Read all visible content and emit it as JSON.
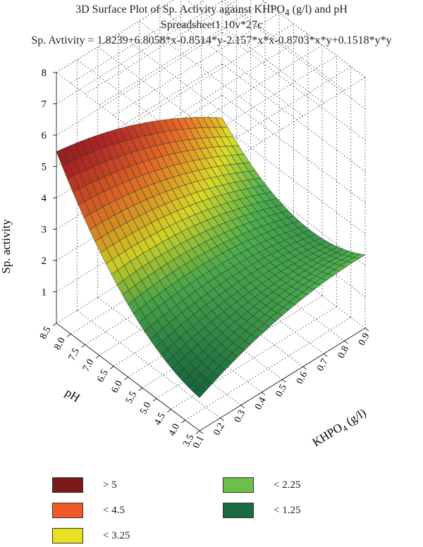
{
  "chart_data": {
    "type": "surface3d",
    "title": "3D Surface Plot of Sp. Activity against KHPO",
    "title_subscript": "4",
    "title_suffix": " (g/l) and pH",
    "subtitle": "Spreadsheet1 10v*27c",
    "equation": "Sp. Avtivity = 1.8239+6.8058*x-0.8514*y-2.157*x*x-0.8703*x*y+0.1518*y*y",
    "xlabel": "KHPO",
    "xlabel_subscript": "4",
    "xlabel_suffix": " (g/l)",
    "ylabel": "pH",
    "zlabel": "Sp. activity",
    "x_ticks": [
      "0.1",
      "0.2",
      "0.3",
      "0.4",
      "0.5",
      "0.6",
      "0.7",
      "0.8",
      "0.9"
    ],
    "y_ticks": [
      "3.5",
      "4.0",
      "4.5",
      "5.0",
      "5.5",
      "6.0",
      "6.5",
      "7.0",
      "7.5",
      "8.0",
      "8.5"
    ],
    "z_ticks": [
      "1",
      "2",
      "3",
      "4",
      "5",
      "6",
      "7",
      "8"
    ],
    "xlim": [
      0.1,
      0.9
    ],
    "ylim": [
      3.5,
      8.5
    ],
    "zlim": [
      0,
      8
    ],
    "coefficients": {
      "c": 1.8239,
      "x": 6.8058,
      "y": -0.8514,
      "xx": -2.157,
      "xy": -0.8703,
      "yy": 0.1518
    },
    "grid": true,
    "legend_position": "bottom",
    "legend": [
      {
        "label": "> 5",
        "color": "#7a1a1a"
      },
      {
        "label": "< 4.5",
        "color": "#f05a28"
      },
      {
        "label": "< 3.25",
        "color": "#e8e020"
      },
      {
        "label": "< 2.25",
        "color": "#6cc04a"
      },
      {
        "label": "< 1.25",
        "color": "#1a6b42"
      }
    ]
  }
}
